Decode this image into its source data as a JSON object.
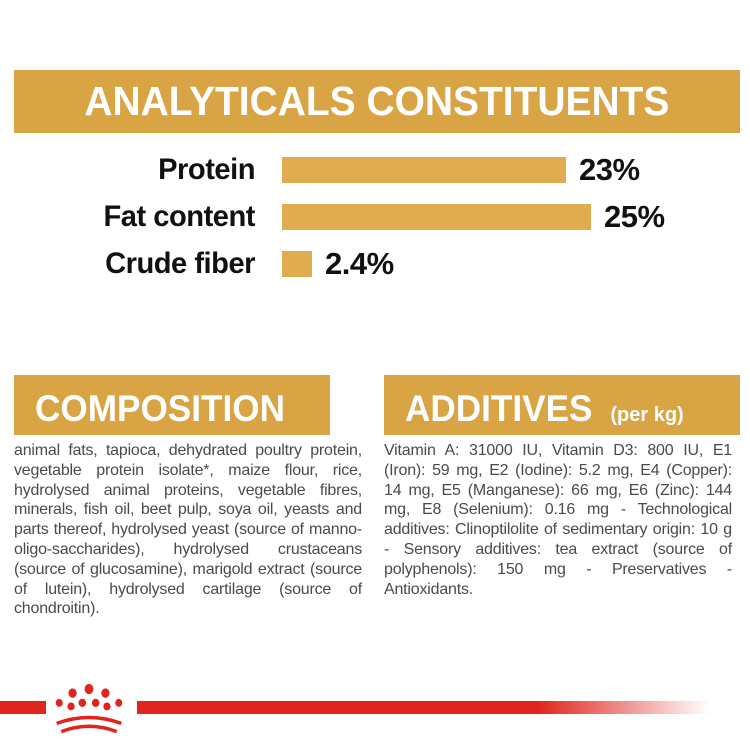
{
  "colors": {
    "gold_header": "#D8A444",
    "gold_bar": "#DFAC4F",
    "red_accent": "#E0261C",
    "body_text": "#4A4A4A",
    "label_text": "#111111",
    "header_text": "#FFFFFF"
  },
  "header": {
    "title": "ANALYTICALS CONSTITUENTS"
  },
  "chart_data": {
    "type": "bar",
    "title": "ANALYTICALS CONSTITUENTS",
    "categories": [
      "Protein",
      "Fat content",
      "Crude fiber"
    ],
    "values": [
      23,
      25,
      2.4
    ],
    "value_labels": [
      "23%",
      "25%",
      "2.4%"
    ],
    "unit": "%",
    "xlim": [
      0,
      25
    ],
    "bar_color": "#DFAC4F",
    "orientation": "horizontal",
    "grid": false,
    "legend": false
  },
  "sections": {
    "composition": {
      "title": "COMPOSITION",
      "body": "animal fats, tapioca, dehydrated poultry protein, vegetable protein isolate*, maize flour, rice, hydrolysed animal proteins, vegetable fibres, minerals, fish oil, beet pulp, soya oil, yeasts and parts thereof, hydrolysed yeast (source of manno-oligo-saccharides), hydrolysed crustaceans (source of glucosamine), marigold extract (source of lutein), hydrolysed cartilage (source of chondroitin)."
    },
    "additives": {
      "title": "ADDITIVES",
      "title_suffix": "(per kg)",
      "body": "Vitamin A: 31000 IU, Vitamin D3: 800 IU, E1 (Iron): 59 mg, E2 (Iodine): 5.2 mg, E4 (Copper): 14 mg, E5 (Manganese): 66 mg, E6 (Zinc): 144 mg, E8 (Selenium): 0.16 mg - Technological additives: Clinoptilolite of sedimentary origin: 10 g - Sensory additives: tea extract (source of polyphenols): 150 mg - Preservatives - Antioxidants."
    }
  },
  "footer": {
    "logo": "royal-canin-crown-logo"
  }
}
